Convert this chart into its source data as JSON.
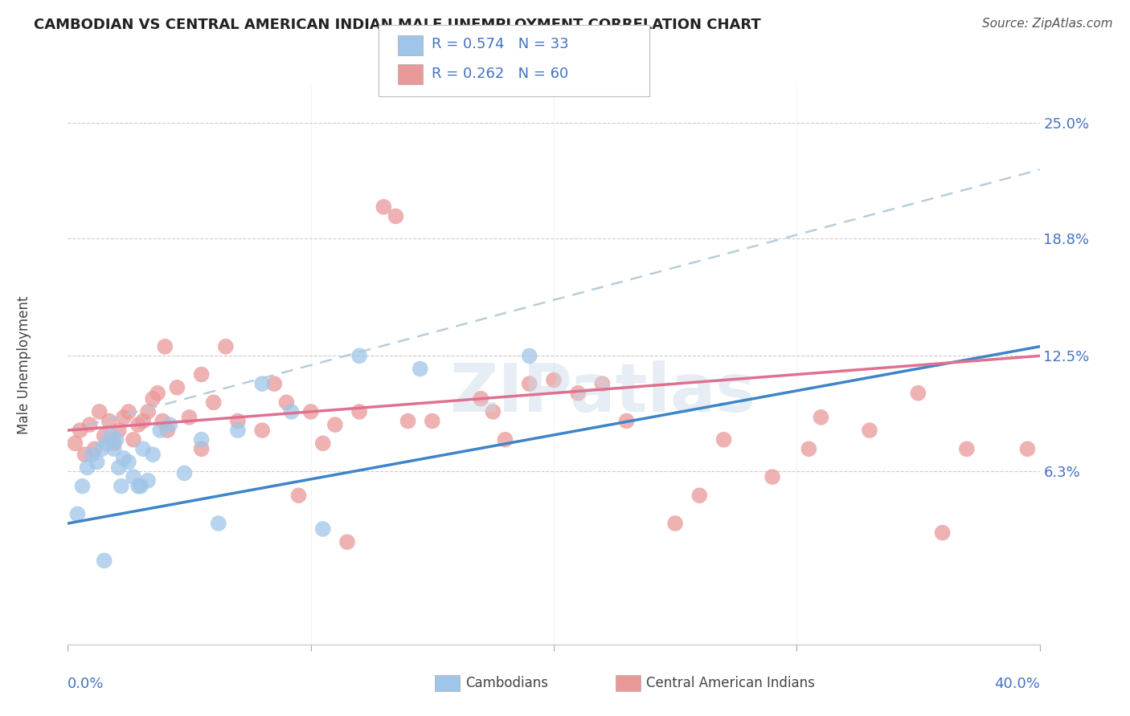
{
  "title": "CAMBODIAN VS CENTRAL AMERICAN INDIAN MALE UNEMPLOYMENT CORRELATION CHART",
  "source": "Source: ZipAtlas.com",
  "ylabel": "Male Unemployment",
  "x_min": 0.0,
  "x_max": 40.0,
  "y_min": -3.0,
  "y_max": 27.0,
  "ytick_labels": [
    "6.3%",
    "12.5%",
    "18.8%",
    "25.0%"
  ],
  "ytick_values": [
    6.3,
    12.5,
    18.8,
    25.0
  ],
  "background_color": "#ffffff",
  "cambodian_color": "#9fc5e8",
  "central_american_color": "#ea9999",
  "trend_blue_color": "#3d85c8",
  "trend_pink_color": "#e07090",
  "dashed_line_color": "#b0c8d8",
  "legend_R_color": "#4472c4",
  "legend_N_color": "#4472c4",
  "ytick_color": "#4472c4",
  "xtick_color": "#4472c4",
  "watermark": "ZIPatlas",
  "cambodian_x": [
    0.4,
    0.6,
    0.8,
    1.0,
    1.2,
    1.4,
    1.6,
    1.8,
    1.9,
    2.0,
    2.1,
    2.3,
    2.5,
    2.7,
    2.9,
    3.1,
    3.3,
    3.5,
    3.8,
    4.2,
    4.8,
    5.5,
    6.2,
    7.0,
    8.0,
    9.2,
    10.5,
    12.0,
    14.5,
    19.0,
    1.5,
    2.2,
    3.0
  ],
  "cambodian_y": [
    4.0,
    5.5,
    6.5,
    7.2,
    6.8,
    7.5,
    7.8,
    8.2,
    7.5,
    8.0,
    6.5,
    7.0,
    6.8,
    6.0,
    5.5,
    7.5,
    5.8,
    7.2,
    8.5,
    8.8,
    6.2,
    8.0,
    3.5,
    8.5,
    11.0,
    9.5,
    3.2,
    12.5,
    11.8,
    12.5,
    1.5,
    5.5,
    5.5
  ],
  "central_american_x": [
    0.3,
    0.5,
    0.7,
    0.9,
    1.1,
    1.3,
    1.5,
    1.7,
    1.9,
    2.1,
    2.3,
    2.5,
    2.7,
    2.9,
    3.1,
    3.3,
    3.5,
    3.7,
    3.9,
    4.1,
    4.5,
    5.0,
    5.5,
    6.0,
    7.0,
    8.0,
    9.0,
    10.0,
    11.0,
    12.0,
    13.0,
    15.0,
    17.0,
    19.0,
    21.0,
    23.0,
    25.0,
    27.0,
    29.0,
    31.0,
    33.0,
    35.0,
    37.0,
    39.5,
    5.5,
    8.5,
    10.5,
    13.5,
    14.0,
    18.0,
    20.0,
    22.0,
    4.0,
    6.5,
    9.5,
    11.5,
    17.5,
    26.0,
    30.5,
    36.0
  ],
  "central_american_y": [
    7.8,
    8.5,
    7.2,
    8.8,
    7.5,
    9.5,
    8.2,
    9.0,
    7.8,
    8.5,
    9.2,
    9.5,
    8.0,
    8.8,
    9.0,
    9.5,
    10.2,
    10.5,
    9.0,
    8.5,
    10.8,
    9.2,
    11.5,
    10.0,
    9.0,
    8.5,
    10.0,
    9.5,
    8.8,
    9.5,
    20.5,
    9.0,
    10.2,
    11.0,
    10.5,
    9.0,
    3.5,
    8.0,
    6.0,
    9.2,
    8.5,
    10.5,
    7.5,
    7.5,
    7.5,
    11.0,
    7.8,
    20.0,
    9.0,
    8.0,
    11.2,
    11.0,
    13.0,
    13.0,
    5.0,
    2.5,
    9.5,
    5.0,
    7.5,
    3.0
  ],
  "blue_trend_x0": 0.0,
  "blue_trend_y0": 3.5,
  "blue_trend_x1": 40.0,
  "blue_trend_y1": 13.0,
  "pink_trend_x0": 0.0,
  "pink_trend_y0": 8.5,
  "pink_trend_x1": 40.0,
  "pink_trend_y1": 12.5,
  "dash_trend_x0": 0.0,
  "dash_trend_y0": 8.5,
  "dash_trend_x1": 40.0,
  "dash_trend_y1": 22.5
}
